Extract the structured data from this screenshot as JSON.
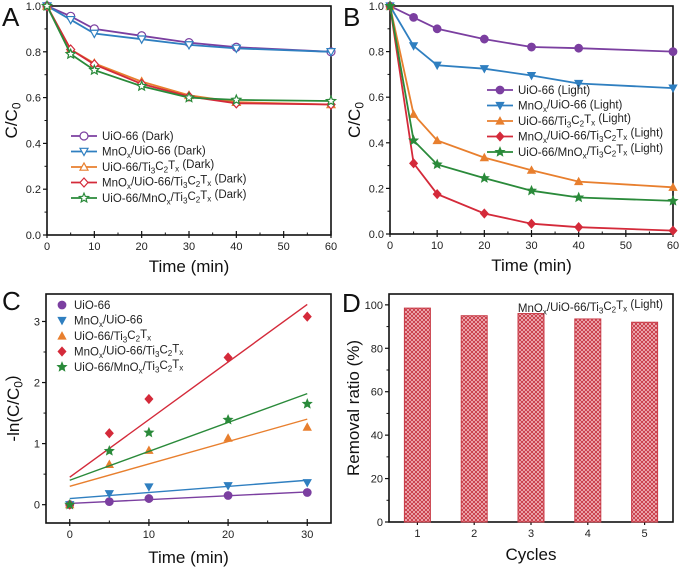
{
  "colors": {
    "purple": "#7b3fa0",
    "blue": "#2f7fc0",
    "orange": "#e87f2e",
    "red": "#d42a3a",
    "green": "#2a8a3a",
    "bar": "#c83a46"
  },
  "chart_data": [
    {
      "panel": "A",
      "type": "line",
      "xlabel": "Time (min)",
      "ylabel": "C/C0",
      "xlim": [
        0,
        60
      ],
      "ylim": [
        0,
        1.0
      ],
      "xticks": [
        "0",
        "10",
        "20",
        "30",
        "40",
        "50",
        "60"
      ],
      "yticks": [
        "0.0",
        "0.2",
        "0.4",
        "0.6",
        "0.8",
        "1.0"
      ],
      "legend_position": "lower-left",
      "x": [
        0,
        5,
        10,
        20,
        30,
        40,
        60
      ],
      "series": [
        {
          "name": "UiO-66 (Dark)",
          "color": "purple",
          "marker": "open-circle",
          "values": [
            1.0,
            0.955,
            0.9,
            0.87,
            0.84,
            0.82,
            0.8
          ]
        },
        {
          "name": "MnOx/UiO-66 (Dark)",
          "color": "blue",
          "marker": "open-triangle-down",
          "values": [
            1.0,
            0.94,
            0.88,
            0.855,
            0.83,
            0.815,
            0.8
          ]
        },
        {
          "name": "UiO-66/Ti3C2Tx (Dark)",
          "color": "orange",
          "marker": "open-triangle-up",
          "values": [
            1.0,
            0.81,
            0.75,
            0.67,
            0.61,
            0.58,
            0.57
          ]
        },
        {
          "name": "MnOx/UiO-66/Ti3C2Tx (Dark)",
          "color": "red",
          "marker": "open-diamond",
          "values": [
            1.0,
            0.81,
            0.745,
            0.66,
            0.605,
            0.575,
            0.57
          ]
        },
        {
          "name": "UiO-66/MnOx/Ti3C2Tx (Dark)",
          "color": "green",
          "marker": "open-star",
          "values": [
            1.0,
            0.79,
            0.72,
            0.65,
            0.6,
            0.59,
            0.585
          ]
        }
      ]
    },
    {
      "panel": "B",
      "type": "line",
      "xlabel": "Time (min)",
      "ylabel": "C/C0",
      "xlim": [
        0,
        60
      ],
      "ylim": [
        0,
        1.0
      ],
      "xticks": [
        "0",
        "10",
        "20",
        "30",
        "40",
        "50",
        "60"
      ],
      "yticks": [
        "0.0",
        "0.2",
        "0.4",
        "0.6",
        "0.8",
        "1.0"
      ],
      "legend_position": "center-right",
      "x": [
        0,
        5,
        10,
        20,
        30,
        40,
        60
      ],
      "series": [
        {
          "name": "UiO-66 (Light)",
          "color": "purple",
          "marker": "circle",
          "values": [
            1.0,
            0.95,
            0.9,
            0.855,
            0.82,
            0.815,
            0.8
          ]
        },
        {
          "name": "MnOx/UiO-66 (Light)",
          "color": "blue",
          "marker": "triangle-down",
          "values": [
            1.0,
            0.825,
            0.74,
            0.725,
            0.695,
            0.66,
            0.64
          ]
        },
        {
          "name": "UiO-66/Ti3C2Tx (Light)",
          "color": "orange",
          "marker": "triangle-up",
          "values": [
            1.0,
            0.525,
            0.41,
            0.335,
            0.28,
            0.23,
            0.205
          ]
        },
        {
          "name": "MnOx/UiO-66/Ti3C2Tx (Light)",
          "color": "red",
          "marker": "diamond",
          "values": [
            1.0,
            0.31,
            0.175,
            0.09,
            0.045,
            0.03,
            0.015
          ]
        },
        {
          "name": "UiO-66/MnOx/Ti3C2Tx (Light)",
          "color": "green",
          "marker": "star",
          "values": [
            1.0,
            0.41,
            0.305,
            0.245,
            0.19,
            0.16,
            0.145
          ]
        }
      ]
    },
    {
      "panel": "C",
      "type": "scatter",
      "xlabel": "Time (min)",
      "ylabel": "-ln(C/C0)",
      "xlim": [
        -3,
        33
      ],
      "ylim": [
        -0.3,
        3.45
      ],
      "xticks": [
        "0",
        "10",
        "20",
        "30"
      ],
      "yticks": [
        "0",
        "1",
        "2",
        "3"
      ],
      "legend_position": "top-left",
      "x": [
        0,
        5,
        10,
        20,
        30
      ],
      "series": [
        {
          "name": "UiO-66",
          "color": "purple",
          "marker": "circle",
          "values": [
            0,
            0.05,
            0.1,
            0.15,
            0.2
          ],
          "fit": [
            0.02,
            0.0063
          ]
        },
        {
          "name": "MnOx/UiO-66",
          "color": "blue",
          "marker": "triangle-down",
          "values": [
            0,
            0.18,
            0.29,
            0.31,
            0.36
          ],
          "fit": [
            0.1,
            0.01
          ]
        },
        {
          "name": "UiO-66/Ti3C2Tx",
          "color": "orange",
          "marker": "triangle-up",
          "values": [
            0,
            0.66,
            0.89,
            1.09,
            1.27
          ],
          "fit": [
            0.3,
            0.0367
          ]
        },
        {
          "name": "MnOx/UiO-66/Ti3C2Tx",
          "color": "red",
          "marker": "diamond",
          "values": [
            0,
            1.17,
            1.73,
            2.41,
            3.08
          ],
          "fit": [
            0.45,
            0.0943
          ]
        },
        {
          "name": "UiO-66/MnOx/Ti3C2Tx",
          "color": "green",
          "marker": "star",
          "values": [
            0,
            0.88,
            1.18,
            1.39,
            1.65
          ],
          "fit": [
            0.4,
            0.0473
          ]
        }
      ]
    },
    {
      "panel": "D",
      "type": "bar",
      "title": "MnOx/UiO-66/Ti3C2Tx (Light)",
      "xlabel": "Cycles",
      "ylabel": "Removal ratio (%)",
      "ylim": [
        0,
        105
      ],
      "categories": [
        "1",
        "2",
        "3",
        "4",
        "5"
      ],
      "yticks": [
        "0",
        "20",
        "40",
        "60",
        "80",
        "100"
      ],
      "values": [
        98.5,
        95,
        96,
        93.5,
        92
      ]
    }
  ]
}
